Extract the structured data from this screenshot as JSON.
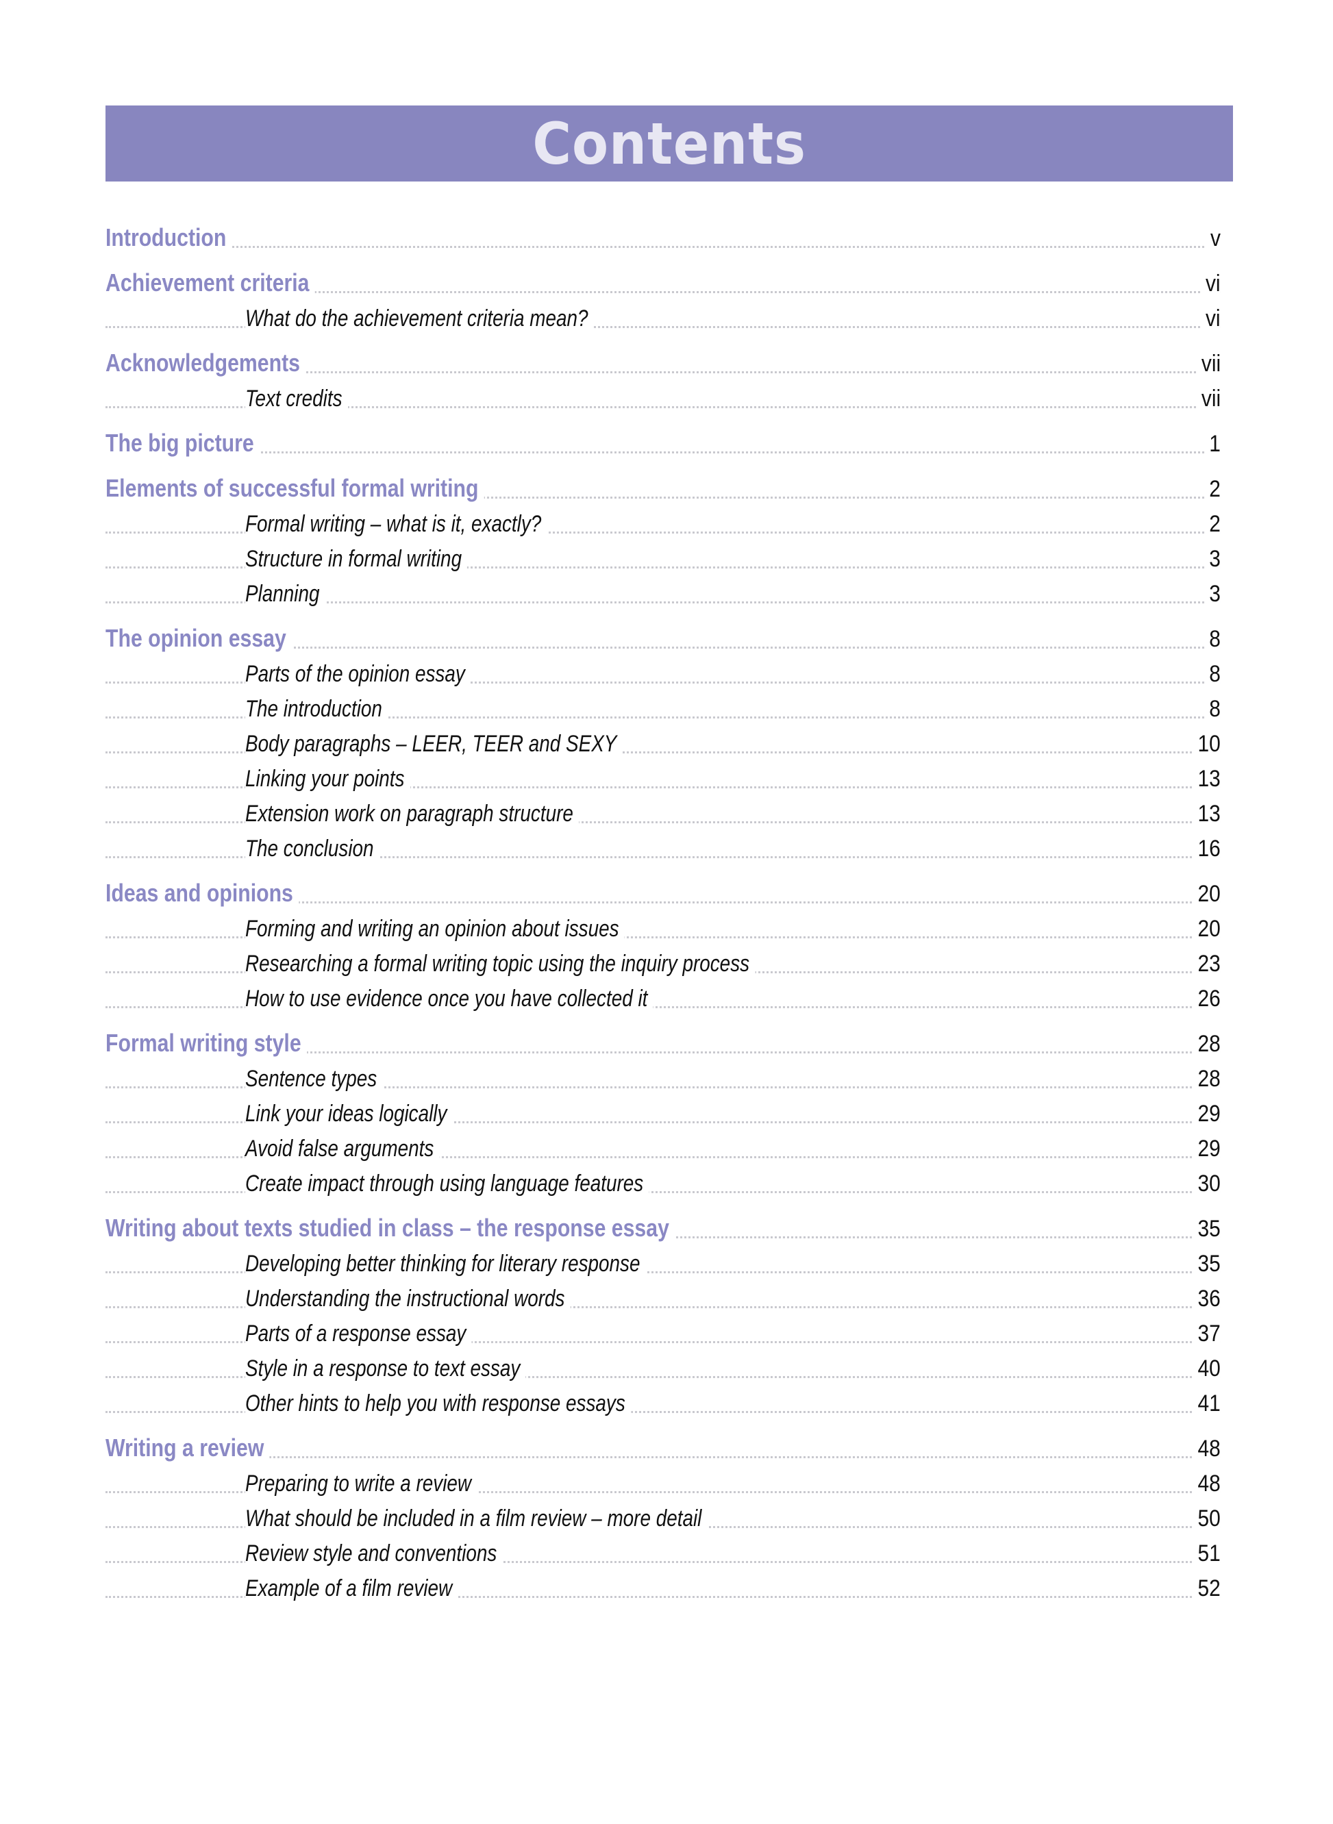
{
  "title": "Contents",
  "colors": {
    "banner": "#8886bf",
    "heading": "#8a88c4"
  },
  "sections": [
    {
      "label": "Introduction",
      "page": "v",
      "items": []
    },
    {
      "label": "Achievement criteria",
      "page": "vi",
      "items": [
        {
          "label": "What do the achievement criteria mean?",
          "page": "vi"
        }
      ]
    },
    {
      "label": "Acknowledgements",
      "page": "vii",
      "items": [
        {
          "label": "Text credits",
          "page": "vii"
        }
      ]
    },
    {
      "label": "The big picture",
      "page": "1",
      "items": []
    },
    {
      "label": "Elements of successful formal writing",
      "page": "2",
      "items": [
        {
          "label": "Formal writing – what is it, exactly?",
          "page": "2"
        },
        {
          "label": "Structure in formal writing",
          "page": "3"
        },
        {
          "label": "Planning",
          "page": "3"
        }
      ]
    },
    {
      "label": "The opinion essay",
      "page": "8",
      "items": [
        {
          "label": "Parts of the opinion essay",
          "page": "8"
        },
        {
          "label": "The introduction",
          "page": "8"
        },
        {
          "label": "Body paragraphs – LEER, TEER and SEXY",
          "page": "10"
        },
        {
          "label": "Linking your points",
          "page": "13"
        },
        {
          "label": "Extension work on paragraph structure",
          "page": "13"
        },
        {
          "label": "The conclusion",
          "page": "16"
        }
      ]
    },
    {
      "label": "Ideas and opinions",
      "page": "20",
      "items": [
        {
          "label": "Forming and writing an opinion about issues",
          "page": "20"
        },
        {
          "label": "Researching a formal writing topic using the inquiry process",
          "page": "23"
        },
        {
          "label": "How to use evidence once you have collected it",
          "page": "26"
        }
      ]
    },
    {
      "label": "Formal writing style",
      "page": "28",
      "items": [
        {
          "label": "Sentence types",
          "page": "28"
        },
        {
          "label": "Link your ideas logically",
          "page": "29"
        },
        {
          "label": "Avoid false arguments",
          "page": "29"
        },
        {
          "label": "Create impact through using language features",
          "page": "30"
        }
      ]
    },
    {
      "label": "Writing about texts studied in class – the response essay",
      "page": "35",
      "items": [
        {
          "label": "Developing better thinking for literary response",
          "page": "35"
        },
        {
          "label": "Understanding the instructional words",
          "page": "36"
        },
        {
          "label": "Parts of a response essay",
          "page": "37"
        },
        {
          "label": "Style in a response to text essay",
          "page": "40"
        },
        {
          "label": "Other hints to help you with response essays",
          "page": "41"
        }
      ]
    },
    {
      "label": "Writing a review",
      "page": "48",
      "items": [
        {
          "label": "Preparing to write a review",
          "page": "48"
        },
        {
          "label": "What should be included in a film review – more detail",
          "page": "50"
        },
        {
          "label": "Review style and conventions",
          "page": "51"
        },
        {
          "label": "Example of a film review",
          "page": "52"
        }
      ]
    }
  ]
}
